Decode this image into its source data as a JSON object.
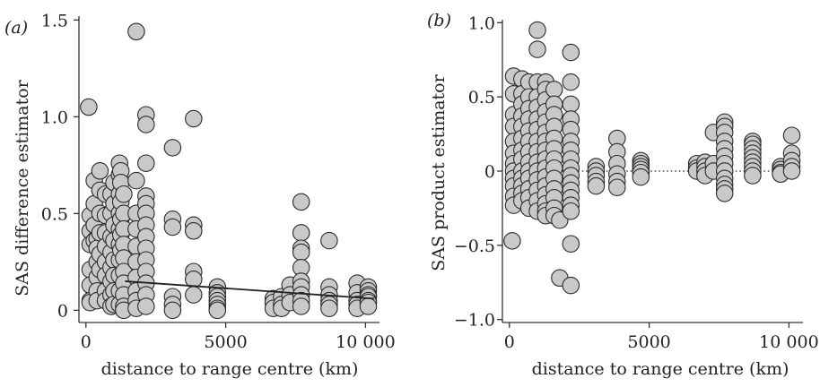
{
  "chart_data": [
    {
      "type": "scatter",
      "panel_label": "(a)",
      "title": "",
      "xlabel": "distance to range centre (km)",
      "ylabel": "SAS difference estimator",
      "xlim": [
        -250,
        10500
      ],
      "ylim": [
        -0.04,
        1.52
      ],
      "xticks": [
        0,
        5000,
        10000
      ],
      "xtick_labels": [
        "0",
        "5000",
        "10 000"
      ],
      "yticks": [
        0,
        0.5,
        1.0,
        1.5
      ],
      "ytick_labels": [
        "0",
        "0.5",
        "1.0",
        "1.5"
      ],
      "grid": false,
      "fit_line": {
        "x": [
          1400,
          10300
        ],
        "y": [
          0.15,
          0.06
        ]
      },
      "points": {
        "x": [
          100,
          150,
          150,
          150,
          150,
          150,
          150,
          150,
          300,
          300,
          300,
          300,
          400,
          400,
          400,
          400,
          400,
          400,
          500,
          500,
          500,
          500,
          500,
          500,
          700,
          700,
          700,
          700,
          700,
          700,
          700,
          700,
          900,
          900,
          900,
          900,
          900,
          900,
          900,
          900,
          1000,
          1000,
          1000,
          1000,
          1000,
          1000,
          1000,
          1000,
          1200,
          1200,
          1200,
          1200,
          1200,
          1200,
          1200,
          1200,
          1200,
          1200,
          1250,
          1250,
          1250,
          1250,
          1250,
          1250,
          1350,
          1350,
          1350,
          1350,
          1350,
          1350,
          1350,
          1350,
          1350,
          1350,
          1800,
          1800,
          1800,
          1800,
          1800,
          1800,
          1800,
          1800,
          1800,
          1800,
          2150,
          2150,
          2150,
          2150,
          2150,
          2150,
          2150,
          2150,
          2150,
          2150,
          2150,
          2150,
          2150,
          2150,
          3100,
          3100,
          3100,
          3100,
          3100,
          3100,
          3850,
          3850,
          3850,
          3850,
          3850,
          3850,
          4700,
          4700,
          4700,
          4700,
          4700,
          4700,
          4700,
          6700,
          6700,
          6700,
          7000,
          7000,
          7000,
          7300,
          7300,
          7300,
          7700,
          7700,
          7700,
          7700,
          7700,
          7700,
          7700,
          7700,
          7700,
          7700,
          8700,
          8700,
          8700,
          8700,
          8700,
          8700,
          9700,
          9700,
          9700,
          9700,
          9700,
          10100,
          10100,
          10100,
          10100,
          10100,
          10100,
          10100
        ],
        "y": [
          1.05,
          0.49,
          0.41,
          0.34,
          0.21,
          0.13,
          0.05,
          0.04,
          0.67,
          0.55,
          0.44,
          0.36,
          0.37,
          0.32,
          0.25,
          0.17,
          0.1,
          0.05,
          0.72,
          0.62,
          0.5,
          0.4,
          0.29,
          0.21,
          0.6,
          0.49,
          0.4,
          0.33,
          0.25,
          0.18,
          0.1,
          0.05,
          0.6,
          0.5,
          0.38,
          0.3,
          0.22,
          0.15,
          0.08,
          0.02,
          0.66,
          0.55,
          0.44,
          0.36,
          0.26,
          0.18,
          0.1,
          0.03,
          0.76,
          0.7,
          0.6,
          0.5,
          0.42,
          0.34,
          0.26,
          0.18,
          0.1,
          0.03,
          0.72,
          0.66,
          0.56,
          0.47,
          0.39,
          0.31,
          0.6,
          0.5,
          0.42,
          0.34,
          0.27,
          0.2,
          0.14,
          0.08,
          0.02,
          0.0,
          1.44,
          0.67,
          0.5,
          0.42,
          0.33,
          0.25,
          0.17,
          0.1,
          0.05,
          0.01,
          1.01,
          0.96,
          0.76,
          0.59,
          0.55,
          0.5,
          0.44,
          0.38,
          0.32,
          0.26,
          0.2,
          0.14,
          0.08,
          0.02,
          0.84,
          0.47,
          0.43,
          0.07,
          0.03,
          0.0,
          0.99,
          0.44,
          0.41,
          0.2,
          0.16,
          0.08,
          0.12,
          0.09,
          0.07,
          0.05,
          0.03,
          0.01,
          0.0,
          0.06,
          0.04,
          0.01,
          0.07,
          0.03,
          0.01,
          0.13,
          0.08,
          0.04,
          0.56,
          0.4,
          0.32,
          0.3,
          0.22,
          0.15,
          0.12,
          0.08,
          0.05,
          0.02,
          0.36,
          0.12,
          0.08,
          0.05,
          0.03,
          0.01,
          0.14,
          0.09,
          0.05,
          0.03,
          0.01,
          0.12,
          0.1,
          0.08,
          0.07,
          0.05,
          0.04,
          0.02
        ]
      }
    },
    {
      "type": "scatter",
      "panel_label": "(b)",
      "title": "",
      "xlabel": "distance to range centre (km)",
      "ylabel": "SAS product estimator",
      "xlim": [
        -250,
        10500
      ],
      "ylim": [
        -1.02,
        1.02
      ],
      "xticks": [
        0,
        5000,
        10000
      ],
      "xtick_labels": [
        "0",
        "5000",
        "10 000"
      ],
      "yticks": [
        -1.0,
        -0.5,
        0,
        0.5,
        1.0
      ],
      "ytick_labels": [
        "−1.0",
        "−0.5",
        "0",
        "0.5",
        "1.0"
      ],
      "grid": false,
      "zero_line": {
        "y": 0,
        "x": [
          0,
          10300
        ]
      },
      "points": {
        "x": [
          100,
          150,
          150,
          150,
          150,
          150,
          150,
          150,
          150,
          150,
          150,
          150,
          150,
          450,
          450,
          450,
          450,
          450,
          450,
          450,
          450,
          450,
          450,
          450,
          450,
          450,
          700,
          700,
          700,
          700,
          700,
          700,
          700,
          700,
          700,
          700,
          700,
          700,
          700,
          1000,
          1000,
          1000,
          1000,
          1000,
          1000,
          1000,
          1000,
          1000,
          1000,
          1000,
          1000,
          1000,
          1000,
          1000,
          1300,
          1300,
          1300,
          1300,
          1300,
          1300,
          1300,
          1300,
          1300,
          1300,
          1300,
          1300,
          1300,
          1300,
          1300,
          1300,
          1600,
          1600,
          1600,
          1600,
          1600,
          1600,
          1600,
          1600,
          1600,
          1600,
          1600,
          1600,
          1600,
          1800,
          1800,
          2200,
          2200,
          2200,
          2200,
          2200,
          2200,
          2200,
          2200,
          2200,
          2200,
          2200,
          2200,
          2200,
          2200,
          2200,
          2200,
          2200,
          3100,
          3100,
          3100,
          3100,
          3100,
          3850,
          3850,
          3850,
          3850,
          3850,
          3850,
          4700,
          4700,
          4700,
          4700,
          4700,
          4700,
          6700,
          6700,
          6700,
          7000,
          7000,
          7000,
          7000,
          7300,
          7300,
          7300,
          7700,
          7700,
          7700,
          7700,
          7700,
          7700,
          7700,
          7700,
          7700,
          7700,
          7700,
          7700,
          8700,
          8700,
          8700,
          8700,
          8700,
          8700,
          8700,
          8700,
          8700,
          9700,
          9700,
          9700,
          9700,
          10100,
          10100,
          10100,
          10100,
          10100
        ],
        "y": [
          -0.47,
          0.64,
          0.52,
          0.38,
          0.3,
          0.2,
          0.12,
          0.05,
          0.0,
          -0.05,
          -0.1,
          -0.17,
          -0.23,
          0.62,
          0.52,
          0.45,
          0.37,
          0.3,
          0.22,
          0.14,
          0.08,
          0.0,
          -0.05,
          -0.1,
          -0.15,
          -0.2,
          0.6,
          0.5,
          0.42,
          0.35,
          0.27,
          0.2,
          0.13,
          0.06,
          0.0,
          -0.05,
          -0.12,
          -0.18,
          -0.25,
          0.95,
          0.82,
          0.6,
          0.5,
          0.43,
          0.35,
          0.28,
          0.2,
          0.13,
          0.06,
          0.0,
          -0.06,
          -0.13,
          -0.2,
          -0.27,
          0.6,
          0.55,
          0.48,
          0.4,
          0.33,
          0.26,
          0.2,
          0.14,
          0.08,
          0.02,
          -0.04,
          -0.1,
          -0.16,
          -0.22,
          -0.27,
          -0.3,
          0.55,
          0.45,
          0.38,
          0.3,
          0.22,
          0.15,
          0.08,
          0.02,
          -0.05,
          -0.12,
          -0.18,
          -0.25,
          -0.3,
          -0.72,
          -0.33,
          0.8,
          0.6,
          0.45,
          0.35,
          0.28,
          0.2,
          0.14,
          0.08,
          0.02,
          -0.03,
          -0.08,
          -0.13,
          -0.18,
          -0.23,
          -0.27,
          -0.49,
          -0.77,
          0.03,
          -0.0,
          -0.03,
          -0.07,
          -0.1,
          0.22,
          0.13,
          0.05,
          -0.02,
          -0.07,
          -0.11,
          0.07,
          0.05,
          0.03,
          0.01,
          -0.01,
          -0.04,
          0.05,
          0.02,
          0.0,
          0.06,
          0.03,
          0.0,
          -0.03,
          0.26,
          0.05,
          0.0,
          0.33,
          0.3,
          0.26,
          0.2,
          0.15,
          0.1,
          0.05,
          0.0,
          -0.05,
          -0.09,
          -0.12,
          -0.15,
          0.2,
          0.18,
          0.15,
          0.12,
          0.09,
          0.06,
          0.03,
          0.0,
          -0.03,
          0.03,
          0.01,
          -0.01,
          -0.02,
          0.24,
          0.12,
          0.07,
          0.03,
          0.0
        ]
      }
    }
  ]
}
